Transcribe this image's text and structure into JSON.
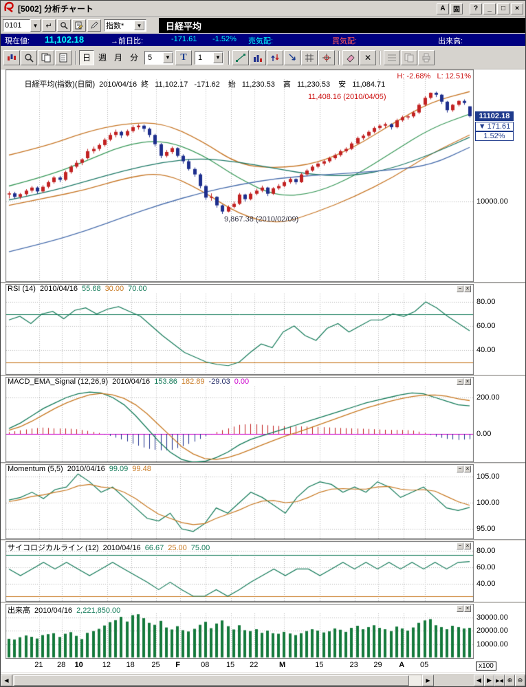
{
  "window": {
    "title": "[5002] 分析チャート",
    "titlebar_buttons": [
      {
        "label": "A"
      },
      {
        "label": "固"
      },
      {
        "label": "?"
      },
      {
        "label": "_"
      },
      {
        "label": "□"
      },
      {
        "label": "×"
      }
    ]
  },
  "command_row": {
    "code_input": "0101",
    "category_select": "指数*",
    "symbol_name": "日経平均"
  },
  "quote_bar": {
    "current_label": "現在値:",
    "current_value": "11,102.18",
    "change_label": "→前日比:",
    "change_value": "-171.61",
    "change_pct": "-1.52%",
    "ask_label": "売気配:",
    "bid_label": "買気配:",
    "volume_label": "出来高:"
  },
  "toolbar": {
    "period_buttons": [
      "日",
      "週",
      "月",
      "分"
    ],
    "active_period": "日",
    "minute_select": "5",
    "t_button": "T",
    "count_select": "1"
  },
  "main_panel": {
    "header": {
      "name": "日経平均(指数)(日間)",
      "date": "2010/04/16",
      "close_label": "終",
      "close": "11,102.17",
      "change": "-171.62",
      "open_label": "始",
      "open": "11,230.53",
      "high_label": "高",
      "high": "11,230.53",
      "low_label": "安",
      "low": "11,084.71"
    },
    "hl_annotation": "H: -2.68%   L: 12.51%",
    "peak_annotation": "11,408.16 (2010/04/05)",
    "trough_annotation": "9,867.38 (2010/02/09)",
    "price_tag": "11102.18",
    "change_arrow": "▼",
    "change_tag": "171.61",
    "pct_tag": "1.52%"
  },
  "panel_headers": {
    "rsi": {
      "title": "RSI (14)",
      "date": "2010/04/16",
      "v1": "55.68",
      "v2": "30.00",
      "v3": "70.00"
    },
    "macd": {
      "title": "MACD_EMA_Signal (12,26,9)",
      "date": "2010/04/16",
      "v1": "153.86",
      "v2": "182.89",
      "v3": "-29.03",
      "v4": "0.00"
    },
    "momentum": {
      "title": "Momentum (5,5)",
      "date": "2010/04/16",
      "v1": "99.09",
      "v2": "99.48"
    },
    "psychological": {
      "title": "サイコロジカルライン (12)",
      "date": "2010/04/16",
      "v1": "66.67",
      "v2": "25.00",
      "v3": "75.00"
    },
    "volume": {
      "title": "出来高",
      "date": "2010/04/16",
      "v1": "2,221,850.00"
    }
  },
  "axes": {
    "main": [
      "10000.00"
    ],
    "rsi": [
      "80.00",
      "60.00",
      "40.00"
    ],
    "macd": [
      "200.00",
      "0.00"
    ],
    "momentum": [
      "105.00",
      "100.00",
      "95.00"
    ],
    "psychological": [
      "80.00",
      "60.00",
      "40.00"
    ],
    "volume": [
      "30000.00",
      "20000.00",
      "10000.00"
    ],
    "volume_unit": "x100"
  },
  "xaxis": {
    "ticks": [
      {
        "t": "21",
        "f": 0.066
      },
      {
        "t": "28",
        "f": 0.115
      },
      {
        "t": "10",
        "f": 0.153,
        "b": 1
      },
      {
        "t": "12",
        "f": 0.213
      },
      {
        "t": "18",
        "f": 0.265
      },
      {
        "t": "25",
        "f": 0.32
      },
      {
        "t": "F",
        "f": 0.372,
        "b": 1
      },
      {
        "t": "08",
        "f": 0.427
      },
      {
        "t": "15",
        "f": 0.482
      },
      {
        "t": "22",
        "f": 0.533
      },
      {
        "t": "M",
        "f": 0.597,
        "b": 1
      },
      {
        "t": "15",
        "f": 0.675
      },
      {
        "t": "23",
        "f": 0.75
      },
      {
        "t": "29",
        "f": 0.802
      },
      {
        "t": "A",
        "f": 0.857,
        "b": 1
      },
      {
        "t": "05",
        "f": 0.903
      }
    ]
  },
  "chart_data": {
    "type": "candlestick-multi-panel",
    "symbol": "日経平均",
    "interval": "日間",
    "candles": [
      [
        10090,
        10130,
        10040,
        10105
      ],
      [
        10105,
        10125,
        10035,
        10060
      ],
      [
        10060,
        10110,
        10030,
        10095
      ],
      [
        10095,
        10160,
        10075,
        10140
      ],
      [
        10140,
        10200,
        10115,
        10180
      ],
      [
        10180,
        10195,
        10100,
        10130
      ],
      [
        10130,
        10210,
        10110,
        10190
      ],
      [
        10190,
        10270,
        10170,
        10250
      ],
      [
        10250,
        10330,
        10230,
        10310
      ],
      [
        10310,
        10330,
        10250,
        10280
      ],
      [
        10280,
        10400,
        10265,
        10380
      ],
      [
        10380,
        10470,
        10360,
        10450
      ],
      [
        10450,
        10530,
        10430,
        10500
      ],
      [
        10500,
        10560,
        10470,
        10545
      ],
      [
        10560,
        10680,
        10545,
        10650
      ],
      [
        10650,
        10710,
        10620,
        10680
      ],
      [
        10680,
        10750,
        10655,
        10730
      ],
      [
        10730,
        10820,
        10710,
        10800
      ],
      [
        10800,
        10890,
        10780,
        10860
      ],
      [
        10860,
        10930,
        10830,
        10900
      ],
      [
        10900,
        10915,
        10820,
        10855
      ],
      [
        10855,
        10930,
        10840,
        10910
      ],
      [
        10910,
        10985,
        10890,
        10960
      ],
      [
        10960,
        11000,
        10930,
        10980
      ],
      [
        10980,
        10995,
        10900,
        10940
      ],
      [
        10940,
        10955,
        10830,
        10860
      ],
      [
        10860,
        10875,
        10710,
        10740
      ],
      [
        10740,
        10755,
        10560,
        10590
      ],
      [
        10590,
        10665,
        10570,
        10640
      ],
      [
        10640,
        10710,
        10615,
        10690
      ],
      [
        10690,
        10700,
        10570,
        10590
      ],
      [
        10590,
        10610,
        10490,
        10520
      ],
      [
        10520,
        10545,
        10400,
        10420
      ],
      [
        10420,
        10440,
        10320,
        10350
      ],
      [
        10350,
        10365,
        10170,
        10200
      ],
      [
        10200,
        10215,
        10020,
        10050
      ],
      [
        10050,
        10105,
        10010,
        10060
      ],
      [
        10060,
        10070,
        9920,
        9950
      ],
      [
        9950,
        9960,
        9840,
        9870
      ],
      [
        9870,
        9950,
        9860,
        9930
      ],
      [
        9930,
        10000,
        9910,
        9970
      ],
      [
        9970,
        10110,
        9955,
        10090
      ],
      [
        10090,
        10100,
        10000,
        10030
      ],
      [
        10030,
        10120,
        10015,
        10100
      ],
      [
        10100,
        10165,
        10080,
        10140
      ],
      [
        10140,
        10205,
        10120,
        10180
      ],
      [
        10180,
        10190,
        10070,
        10100
      ],
      [
        10100,
        10185,
        10085,
        10170
      ],
      [
        10170,
        10225,
        10150,
        10200
      ],
      [
        10200,
        10270,
        10185,
        10250
      ],
      [
        10250,
        10310,
        10230,
        10290
      ],
      [
        10290,
        10300,
        10220,
        10250
      ],
      [
        10250,
        10370,
        10240,
        10350
      ],
      [
        10350,
        10420,
        10330,
        10400
      ],
      [
        10400,
        10470,
        10385,
        10450
      ],
      [
        10450,
        10510,
        10430,
        10490
      ],
      [
        10490,
        10540,
        10465,
        10520
      ],
      [
        10520,
        10580,
        10500,
        10560
      ],
      [
        10560,
        10620,
        10540,
        10600
      ],
      [
        10600,
        10670,
        10580,
        10650
      ],
      [
        10650,
        10700,
        10630,
        10680
      ],
      [
        10680,
        10770,
        10665,
        10750
      ],
      [
        10750,
        10840,
        10735,
        10820
      ],
      [
        10820,
        10870,
        10795,
        10850
      ],
      [
        10850,
        10920,
        10830,
        10900
      ],
      [
        10900,
        10970,
        10880,
        10950
      ],
      [
        10950,
        11000,
        10925,
        10980
      ],
      [
        10980,
        11020,
        10950,
        11000
      ],
      [
        11000,
        11010,
        10930,
        10960
      ],
      [
        10960,
        11070,
        10945,
        11050
      ],
      [
        11050,
        11110,
        11030,
        11090
      ],
      [
        11090,
        11120,
        11060,
        11100
      ],
      [
        11100,
        11170,
        11080,
        11150
      ],
      [
        11150,
        11270,
        11130,
        11250
      ],
      [
        11250,
        11360,
        11230,
        11340
      ],
      [
        11340,
        11408,
        11320,
        11405
      ],
      [
        11405,
        11420,
        11350,
        11380
      ],
      [
        11380,
        11390,
        11260,
        11290
      ],
      [
        11290,
        11300,
        11150,
        11180
      ],
      [
        11180,
        11260,
        11160,
        11250
      ],
      [
        11250,
        11310,
        11230,
        11300
      ],
      [
        11300,
        11320,
        11250,
        11274
      ],
      [
        11230,
        11231,
        11085,
        11102
      ]
    ],
    "overlays": [
      {
        "name": "bollinger-upper",
        "color": "#c87828",
        "values": [
          10600,
          10720,
          10900,
          11010,
          11020,
          10790,
          10470,
          10430,
          10490,
          10700,
          11010,
          11290,
          11420
        ]
      },
      {
        "name": "bollinger-lower",
        "color": "#c87828",
        "values": [
          9950,
          10050,
          10150,
          10300,
          10380,
          10150,
          9830,
          9700,
          9860,
          10060,
          10310,
          10620,
          10860
        ]
      },
      {
        "name": "ma-short",
        "color": "#3a9a5a",
        "values": [
          10200,
          10330,
          10520,
          10730,
          10800,
          10620,
          10290,
          10060,
          10110,
          10330,
          10640,
          10950,
          11130
        ]
      },
      {
        "name": "ma-mid",
        "color": "#1f7a68",
        "values": [
          10020,
          10120,
          10260,
          10400,
          10510,
          10560,
          10510,
          10420,
          10340,
          10330,
          10430,
          10610,
          10830
        ]
      },
      {
        "name": "ma-long",
        "color": "#4a6fae",
        "values": [
          9350,
          9470,
          9620,
          9800,
          9970,
          10110,
          10220,
          10300,
          10340,
          10370,
          10410,
          10470,
          10700
        ]
      }
    ],
    "rsi": {
      "ref_high": 70,
      "ref_low": 30,
      "last": 55.68,
      "values": [
        65,
        68,
        62,
        70,
        72,
        66,
        73,
        75,
        70,
        74,
        76,
        72,
        68,
        60,
        52,
        45,
        38,
        34,
        30,
        28,
        27,
        30,
        38,
        45,
        42,
        55,
        60,
        52,
        48,
        58,
        62,
        55,
        60,
        65,
        65,
        70,
        68,
        72,
        80,
        75,
        68,
        62,
        56
      ]
    },
    "macd": {
      "last_macd": 153.86,
      "last_signal": 182.89,
      "last_hist": -29.03,
      "macd": [
        30,
        60,
        100,
        140,
        170,
        200,
        220,
        230,
        225,
        200,
        160,
        100,
        30,
        -40,
        -100,
        -140,
        -155,
        -150,
        -130,
        -100,
        -60,
        -30,
        -10,
        10,
        30,
        50,
        70,
        90,
        110,
        130,
        150,
        170,
        185,
        200,
        215,
        225,
        220,
        200,
        180,
        160,
        154
      ],
      "signal": [
        20,
        40,
        70,
        105,
        140,
        170,
        195,
        215,
        222,
        215,
        195,
        160,
        110,
        50,
        -10,
        -70,
        -110,
        -135,
        -140,
        -130,
        -110,
        -85,
        -60,
        -35,
        -12,
        8,
        30,
        52,
        75,
        98,
        120,
        142,
        160,
        178,
        193,
        205,
        213,
        214,
        207,
        193,
        183
      ]
    },
    "momentum": {
      "last_fast": 99.09,
      "last_slow": 99.48,
      "fast": [
        100.5,
        101,
        102,
        100.8,
        102.5,
        103,
        105.5,
        104,
        102,
        103,
        101,
        99,
        97,
        96.5,
        98,
        95,
        94.5,
        96,
        99,
        98,
        100,
        102,
        101,
        99.5,
        98,
        101,
        103,
        104,
        103.5,
        102,
        103,
        102,
        104,
        103,
        101,
        102,
        103,
        101,
        99,
        98.5,
        99.1
      ],
      "slow": [
        100.2,
        100.6,
        101.2,
        101.5,
        102,
        102.4,
        103.2,
        103.5,
        103,
        102.8,
        102,
        100.8,
        99.2,
        97.8,
        97,
        96.2,
        95.8,
        96,
        97,
        97.8,
        98.6,
        99.6,
        100.3,
        100.4,
        100,
        100.2,
        101,
        102,
        102.6,
        102.7,
        102.6,
        102.6,
        103,
        103.1,
        102.6,
        102.4,
        102.5,
        102.2,
        101.2,
        100.2,
        99.5
      ]
    },
    "psychological": {
      "ref_high": 75,
      "ref_low": 25,
      "last": 66.67,
      "values": [
        58,
        50,
        58,
        66,
        58,
        66,
        58,
        50,
        58,
        66,
        58,
        50,
        42,
        33,
        42,
        33,
        25,
        25,
        33,
        25,
        33,
        42,
        50,
        58,
        50,
        58,
        58,
        50,
        58,
        66,
        58,
        66,
        58,
        66,
        58,
        66,
        58,
        66,
        58,
        66,
        67
      ]
    },
    "volume": {
      "unit": "x100",
      "last": 22218,
      "values": [
        14000,
        13500,
        15200,
        16500,
        15500,
        14200,
        16800,
        17500,
        18200,
        15400,
        17800,
        19000,
        16200,
        13800,
        18500,
        19800,
        21500,
        24000,
        26500,
        28000,
        30500,
        27000,
        31800,
        32500,
        29500,
        26000,
        24500,
        27500,
        22500,
        21000,
        23500,
        20500,
        19500,
        21500,
        24500,
        26800,
        22000,
        25500,
        27800,
        23500,
        21000,
        24200,
        20500,
        19800,
        21200,
        18500,
        20200,
        18200,
        17800,
        19200,
        18000,
        16800,
        18200,
        19800,
        21200,
        20200,
        18800,
        19600,
        21800,
        20800,
        19200,
        22200,
        23800,
        21200,
        22800,
        24200,
        22200,
        21200,
        19800,
        23200,
        21800,
        20200,
        22500,
        26000,
        27800,
        28800,
        24200,
        22800,
        21200,
        23800,
        22800,
        21800,
        22218
      ]
    },
    "y_gridlines": {
      "main": [
        10000
      ],
      "rsi": [
        80,
        60,
        40
      ],
      "macd": [
        200
      ],
      "momentum": [
        105,
        100,
        95
      ],
      "psychological": [
        80,
        60,
        40
      ],
      "volume": [
        30000,
        20000,
        10000
      ]
    },
    "colors": {
      "up": "#c22222",
      "down": "#1e2f8e",
      "rsi": "#127a58",
      "signal": "#c87820",
      "zero": "#cc00cc",
      "hist_pos": "#c22222",
      "hist_neg": "#1e2f8e",
      "volume": "#157a3c",
      "grid": "#b4b4b4"
    }
  }
}
